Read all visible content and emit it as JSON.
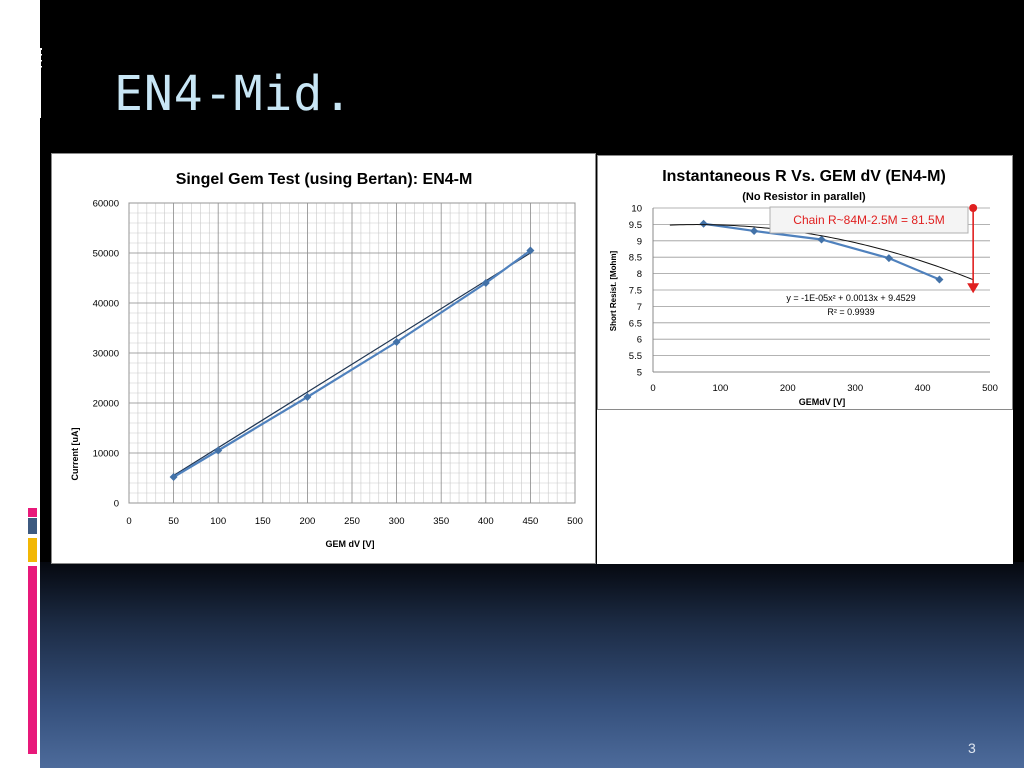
{
  "slide": {
    "title": "EN4-Mid.",
    "page_number": "3"
  },
  "colors": {
    "series": "#4f81bd",
    "marker": "#4372a8",
    "trend": "#1f3552",
    "annotation": "#e02020",
    "title_text": "#c8e6f5"
  },
  "chart_data": [
    {
      "type": "scatter",
      "title": "Singel Gem Test (using Bertan): EN4-M",
      "xlabel": "GEM dV [V]",
      "ylabel": "Current [uA]",
      "xlim": [
        0,
        500
      ],
      "ylim": [
        0,
        60000
      ],
      "x_ticks": [
        0,
        50,
        100,
        150,
        200,
        250,
        300,
        350,
        400,
        450,
        500
      ],
      "y_ticks": [
        0,
        10000,
        20000,
        30000,
        40000,
        50000,
        60000
      ],
      "grid": true,
      "series": [
        {
          "x": [
            50,
            100,
            200,
            300,
            400,
            450
          ],
          "y": [
            5200,
            10500,
            21200,
            32200,
            44000,
            50500
          ]
        }
      ],
      "trendline": {
        "type": "linear",
        "x": [
          50,
          450
        ],
        "y": [
          5500,
          50000
        ]
      }
    },
    {
      "type": "scatter",
      "title": "Instantaneous R Vs. GEM dV (EN4-M)",
      "subtitle": "(No Resistor in parallel)",
      "xlabel": "GEMdV  [V]",
      "ylabel": "Short Resist.  [Mohm]",
      "xlim": [
        0,
        500
      ],
      "ylim": [
        5,
        10
      ],
      "x_ticks": [
        0,
        100,
        200,
        300,
        400,
        500
      ],
      "y_ticks": [
        5,
        5.5,
        6,
        6.5,
        7,
        7.5,
        8,
        8.5,
        9,
        9.5,
        10
      ],
      "grid": true,
      "series": [
        {
          "x": [
            75,
            150,
            250,
            350,
            425
          ],
          "y": [
            9.52,
            9.3,
            9.04,
            8.47,
            7.82
          ]
        }
      ],
      "trendline": {
        "type": "polynomial",
        "coefficients": [
          -1e-05,
          0.0013,
          9.4529
        ],
        "x_range": [
          25,
          475
        ],
        "equation": "y = -1E-05x² + 0.0013x + 9.4529",
        "r_squared": "R² = 0.9939"
      },
      "annotation": {
        "text": "Chain R~84M-2.5M = 81.5M",
        "arrow_from": [
          475,
          10
        ],
        "arrow_to": [
          475,
          7.4
        ]
      }
    }
  ]
}
